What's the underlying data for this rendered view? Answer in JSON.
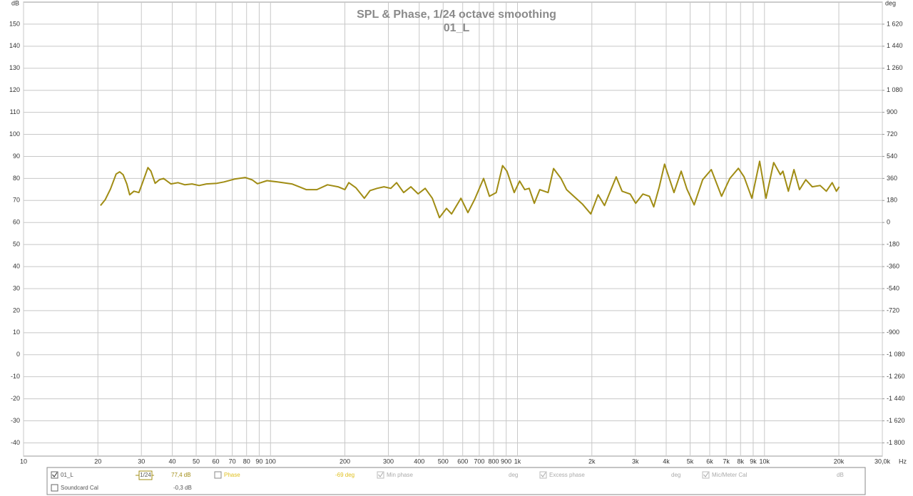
{
  "chart_data": {
    "type": "line",
    "title": "SPL & Phase, 1/24 octave smoothing",
    "subtitle": "01_L",
    "y_label": "dB",
    "y2_label": "deg",
    "x_unit": "Hz",
    "x_scale": "log",
    "grid": true,
    "xlim": [
      10,
      30000
    ],
    "ylim": [
      -46,
      160
    ],
    "y2lim": [
      -1908,
      1800
    ],
    "xticks": [
      10,
      20,
      30,
      40,
      50,
      60,
      70,
      80,
      90,
      100,
      200,
      300,
      400,
      500,
      600,
      700,
      800,
      900,
      {
        "value": 1000,
        "label": "1k"
      },
      {
        "value": 2000,
        "label": "2k"
      },
      {
        "value": 3000,
        "label": "3k"
      },
      {
        "value": 4000,
        "label": "4k"
      },
      {
        "value": 5000,
        "label": "5k"
      },
      {
        "value": 6000,
        "label": "6k"
      },
      {
        "value": 7000,
        "label": "7k"
      },
      {
        "value": 8000,
        "label": "8k"
      },
      {
        "value": 9000,
        "label": "9k"
      },
      {
        "value": 10000,
        "label": "10k"
      },
      {
        "value": 20000,
        "label": "20k"
      },
      {
        "value": 30000,
        "label": "30,0k"
      }
    ],
    "yticks": [
      -40,
      -30,
      -20,
      -10,
      0,
      10,
      20,
      30,
      40,
      50,
      60,
      70,
      80,
      90,
      100,
      110,
      120,
      130,
      140,
      150
    ],
    "y2ticks": [
      {
        "value": -1800,
        "label": "-1 800"
      },
      {
        "value": -1620,
        "label": "-1 620"
      },
      {
        "value": -1440,
        "label": "-1 440"
      },
      {
        "value": -1260,
        "label": "-1 260"
      },
      {
        "value": -1080,
        "label": "-1 080"
      },
      -900,
      -720,
      -540,
      -360,
      -180,
      0,
      180,
      360,
      540,
      720,
      900,
      {
        "value": 1080,
        "label": "1 080"
      },
      {
        "value": 1260,
        "label": "1 260"
      },
      {
        "value": 1440,
        "label": "1 440"
      },
      {
        "value": 1620,
        "label": "1 620"
      }
    ],
    "x": [
      20.5,
      21.4,
      22.5,
      23.7,
      24.5,
      25.3,
      26.2,
      26.9,
      28,
      29.3,
      30.2,
      31.9,
      32.8,
      34.1,
      35.5,
      36.9,
      39.5,
      42.2,
      45,
      48.1,
      51.4,
      55,
      60.7,
      64.8,
      71.5,
      79,
      84.4,
      88.5,
      96.8,
      106.7,
      122,
      130.6,
      139.5,
      154,
      170,
      187.6,
      200,
      207.5,
      221.6,
      239.8,
      253,
      270,
      288,
      307,
      324,
      346,
      370,
      396,
      423,
      452,
      483,
      516,
      541,
      590,
      630,
      670,
      729,
      770,
      820,
      870,
      906,
      970,
      1020,
      1070,
      1115,
      1170,
      1230,
      1330,
      1400,
      1500,
      1580,
      1690,
      1830,
      1980,
      2120,
      2250,
      2510,
      2650,
      2860,
      3010,
      3220,
      3420,
      3560,
      3750,
      3940,
      4300,
      4600,
      4850,
      5190,
      5620,
      6090,
      6700,
      7240,
      7840,
      8270,
      8890,
      9560,
      10140,
      10900,
      11600,
      11870,
      12500,
      13160,
      13860,
      14700,
      15600,
      16800,
      17800,
      18800,
      19550,
      20080
    ],
    "series": [
      {
        "name": "01_L",
        "color": "#a08c14",
        "values": [
          67.7,
          70.3,
          75.2,
          82,
          83,
          81.7,
          77.5,
          72.6,
          74.2,
          73.6,
          77.5,
          84.9,
          83.3,
          77.8,
          79.4,
          80,
          77.5,
          78.1,
          77.1,
          77.5,
          76.8,
          77.5,
          77.8,
          78.4,
          79.7,
          80.4,
          79.3,
          77.6,
          79,
          78.4,
          77.5,
          76.2,
          74.9,
          74.9,
          77.1,
          76.2,
          74.9,
          78.1,
          75.8,
          71,
          74.5,
          75.5,
          76.2,
          75.5,
          78.1,
          73.6,
          76.2,
          73,
          75.5,
          71,
          62.2,
          66.4,
          63.9,
          71,
          64.5,
          70.4,
          80,
          71.9,
          73.6,
          85.8,
          83.3,
          73.6,
          78.8,
          74.9,
          75.5,
          68.7,
          74.9,
          73.6,
          84.5,
          80,
          74.9,
          71.9,
          68.4,
          63.9,
          72.6,
          67.7,
          80.7,
          74.2,
          72.9,
          68.7,
          72.9,
          71.9,
          67.1,
          76.2,
          86.5,
          73.6,
          83.3,
          75.2,
          68,
          79.4,
          84,
          71.9,
          80,
          84.6,
          80.7,
          71,
          87.8,
          71,
          87.2,
          81.7,
          83.3,
          74.2,
          84,
          74.9,
          79.4,
          76.2,
          76.8,
          74.2,
          78.1,
          74.2,
          76.2
        ]
      }
    ]
  },
  "controls": {
    "trace": "01_L",
    "smoothing": "1/24",
    "spl": "77,4 dB",
    "phase": "Phase",
    "phase_value": "-69 deg",
    "min_phase": "Min phase",
    "min_phase_unit": "deg",
    "excess_phase": "Excess phase",
    "excess_phase_unit": "deg",
    "mic_cal": "Mic/Meter Cal",
    "mic_cal_unit": "dB",
    "soundcard_cal": "Soundcard Cal",
    "soundcard_value": "-0,3 dB"
  }
}
